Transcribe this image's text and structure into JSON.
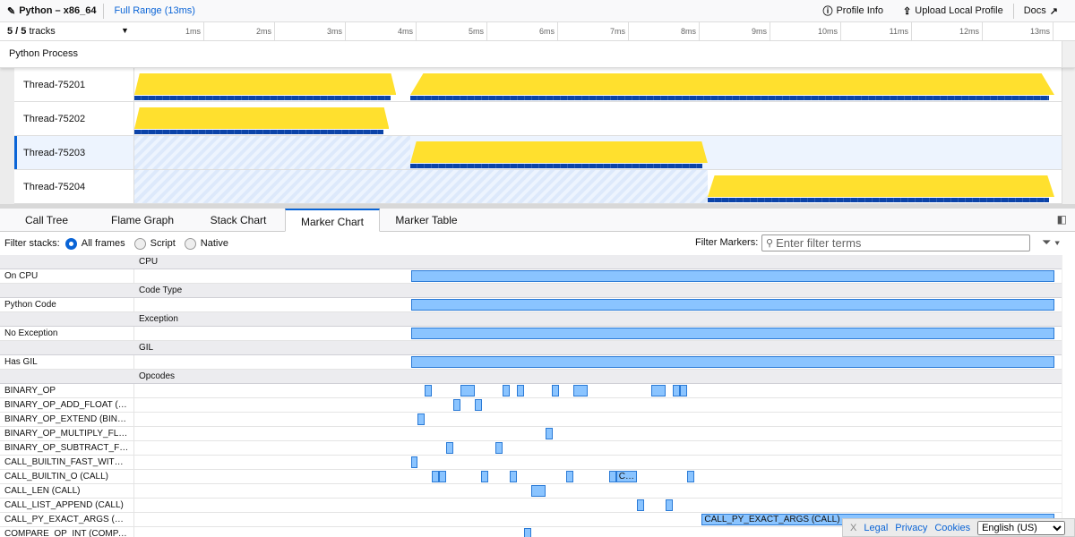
{
  "topbar": {
    "title": "Python – x86_64",
    "range": "Full Range (13ms)",
    "profile_info": "Profile Info",
    "upload": "Upload Local Profile",
    "docs": "Docs"
  },
  "timeline": {
    "tracks_count": "5 / 5",
    "tracks_label": "tracks",
    "ticks": [
      "1ms",
      "2ms",
      "3ms",
      "4ms",
      "5ms",
      "6ms",
      "7ms",
      "8ms",
      "9ms",
      "10ms",
      "11ms",
      "12ms",
      "13ms"
    ],
    "process": "Python Process",
    "threads": [
      {
        "name": "Thread-75201",
        "active_ms": [
          [
            0,
            3.7
          ],
          [
            3.9,
            13
          ]
        ],
        "selected": false
      },
      {
        "name": "Thread-75202",
        "active_ms": [
          [
            0,
            3.6
          ]
        ],
        "selected": false
      },
      {
        "name": "Thread-75203",
        "active_ms": [
          [
            3.9,
            8.1
          ]
        ],
        "selected": true
      },
      {
        "name": "Thread-75204",
        "active_ms": [
          [
            8.1,
            13
          ]
        ],
        "selected": false
      }
    ]
  },
  "tabs": [
    {
      "label": "Call Tree"
    },
    {
      "label": "Flame Graph"
    },
    {
      "label": "Stack Chart"
    },
    {
      "label": "Marker Chart",
      "active": true
    },
    {
      "label": "Marker Table"
    }
  ],
  "filters": {
    "label": "Filter stacks:",
    "options": [
      "All frames",
      "Script",
      "Native"
    ],
    "selected": "All frames",
    "markers_label": "Filter Markers:",
    "placeholder": "Enter filter terms"
  },
  "marker_rows": [
    {
      "header": "CPU"
    },
    {
      "name": "On CPU",
      "markers": [
        [
          3.92,
          9.09
        ]
      ]
    },
    {
      "header": "Code Type"
    },
    {
      "name": "Python Code",
      "markers": [
        [
          3.92,
          9.09
        ]
      ]
    },
    {
      "header": "Exception"
    },
    {
      "name": "No Exception",
      "markers": [
        [
          3.92,
          9.09
        ]
      ]
    },
    {
      "header": "GIL"
    },
    {
      "name": "Has GIL",
      "markers": [
        [
          3.92,
          9.09
        ]
      ]
    },
    {
      "header": "Opcodes"
    },
    {
      "name": "BINARY_OP",
      "markers": [
        [
          4.11,
          0.1
        ],
        [
          4.62,
          0.2
        ],
        [
          5.22,
          0.1
        ],
        [
          5.42,
          0.1
        ],
        [
          5.91,
          0.1
        ],
        [
          6.22,
          0.2
        ],
        [
          7.32,
          0.2
        ],
        [
          7.62,
          0.1
        ],
        [
          7.72,
          0.1
        ]
      ]
    },
    {
      "name": "BINARY_OP_ADD_FLOAT (B…",
      "markers": [
        [
          4.52,
          0.1
        ],
        [
          4.82,
          0.1
        ]
      ]
    },
    {
      "name": "BINARY_OP_EXTEND (BINA…",
      "markers": [
        [
          4.01,
          0.1
        ]
      ]
    },
    {
      "name": "BINARY_OP_MULTIPLY_FL…",
      "markers": [
        [
          5.82,
          0.1
        ]
      ]
    },
    {
      "name": "BINARY_OP_SUBTRACT_FL…",
      "markers": [
        [
          4.42,
          0.1
        ],
        [
          5.11,
          0.1
        ]
      ]
    },
    {
      "name": "CALL_BUILTIN_FAST_WITH…",
      "markers": [
        [
          3.92,
          0.09
        ]
      ]
    },
    {
      "name": "CALL_BUILTIN_O (CALL)",
      "markers": [
        [
          4.22,
          0.1
        ],
        [
          4.32,
          0.1
        ],
        [
          4.91,
          0.1
        ],
        [
          5.32,
          0.1
        ],
        [
          6.11,
          0.1
        ],
        [
          6.72,
          0.1
        ],
        [
          6.82,
          0.3,
          "C…"
        ],
        [
          7.82,
          0.1
        ]
      ]
    },
    {
      "name": "CALL_LEN (CALL)",
      "markers": [
        [
          5.62,
          0.2
        ]
      ]
    },
    {
      "name": "CALL_LIST_APPEND (CALL)",
      "markers": [
        [
          7.11,
          0.1
        ],
        [
          7.52,
          0.1
        ]
      ]
    },
    {
      "name": "CALL_PY_EXACT_ARGS (C…",
      "markers": [
        [
          8.03,
          4.98,
          "CALL_PY_EXACT_ARGS (CALL)"
        ]
      ]
    },
    {
      "name": "COMPARE_OP_INT (COMPA…",
      "markers": [
        [
          5.52,
          0.1
        ]
      ]
    }
  ],
  "footer": {
    "close": "X",
    "legal": "Legal",
    "privacy": "Privacy",
    "cookies": "Cookies",
    "language": "English (US)"
  }
}
